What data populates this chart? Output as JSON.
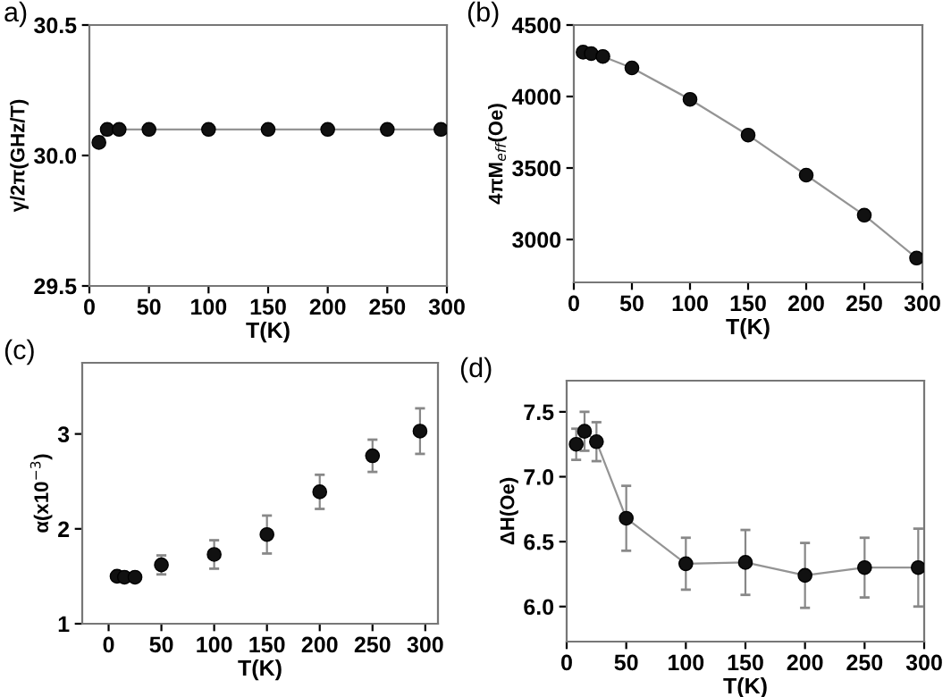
{
  "chart_data": [
    {
      "type": "line",
      "title": "a)",
      "xlabel": "T(K)",
      "ylabel": "γ/2π(GHz/T)",
      "xlim": [
        0,
        300
      ],
      "xticks": [
        0,
        50,
        100,
        150,
        200,
        250,
        300
      ],
      "ylim": [
        29.5,
        30.5
      ],
      "yticks": [
        {
          "value": 29.5,
          "label": "29.5"
        },
        {
          "value": 30.0,
          "label": "30.0"
        },
        {
          "value": 30.5,
          "label": "30.5"
        }
      ],
      "marker": "circle",
      "grid": false,
      "legend": false,
      "series": [
        {
          "color": "#111111",
          "x": [
            8,
            15,
            25,
            50,
            100,
            150,
            200,
            250,
            295
          ],
          "values": [
            30.05,
            30.1,
            30.1,
            30.1,
            30.1,
            30.1,
            30.1,
            30.1,
            30.1
          ]
        }
      ]
    },
    {
      "type": "line",
      "title": "(b)",
      "xlabel": "T(K)",
      "ylabel": "4πM$_{eff}$(Oe)",
      "xlim": [
        0,
        300
      ],
      "xticks": [
        0,
        50,
        100,
        150,
        200,
        250,
        300
      ],
      "ylim": [
        2700,
        4500
      ],
      "yticks": [
        3000,
        3500,
        4000,
        4500
      ],
      "marker": "circle",
      "grid": false,
      "legend": false,
      "series": [
        {
          "color": "#111111",
          "x": [
            8,
            15,
            25,
            50,
            100,
            150,
            200,
            250,
            295
          ],
          "values": [
            4310,
            4300,
            4280,
            4200,
            3980,
            3730,
            3450,
            3170,
            2870
          ]
        }
      ]
    },
    {
      "type": "scatter",
      "title": "(c)",
      "xlabel": "T(K)",
      "ylabel": "α(x10$^{−3}$)",
      "xlim": [
        -25,
        312
      ],
      "xticks": [
        0,
        50,
        100,
        150,
        200,
        250,
        300
      ],
      "ylim": [
        1,
        3.75
      ],
      "yticks": [
        1,
        2,
        3
      ],
      "marker": "circle",
      "grid": false,
      "legend": false,
      "series": [
        {
          "color": "#111111",
          "x": [
            8,
            15,
            25,
            50,
            100,
            150,
            200,
            250,
            295
          ],
          "values": [
            1.5,
            1.49,
            1.49,
            1.62,
            1.73,
            1.94,
            2.39,
            2.77,
            3.03
          ],
          "errors": [
            null,
            null,
            null,
            0.1,
            0.15,
            0.2,
            0.18,
            0.17,
            0.24
          ]
        }
      ]
    },
    {
      "type": "line",
      "title": "(d)",
      "xlabel": "T(K)",
      "ylabel": "ΔH(Oe)",
      "xlim": [
        0,
        300
      ],
      "xticks": [
        0,
        50,
        100,
        150,
        200,
        250,
        300
      ],
      "ylim": [
        5.73,
        7.74
      ],
      "yticks": [
        {
          "value": 6.0,
          "label": "6.0"
        },
        {
          "value": 6.5,
          "label": "6.5"
        },
        {
          "value": 7.0,
          "label": "7.0"
        },
        {
          "value": 7.5,
          "label": "7.5"
        }
      ],
      "marker": "circle",
      "grid": false,
      "legend": false,
      "series": [
        {
          "color": "#111111",
          "x": [
            8,
            15,
            25,
            50,
            100,
            150,
            200,
            250,
            295
          ],
          "values": [
            7.25,
            7.35,
            7.27,
            6.68,
            6.33,
            6.34,
            6.24,
            6.3,
            6.3
          ],
          "errors": [
            0.12,
            0.15,
            0.15,
            0.25,
            0.2,
            0.25,
            0.25,
            0.23,
            0.3
          ]
        }
      ]
    }
  ]
}
